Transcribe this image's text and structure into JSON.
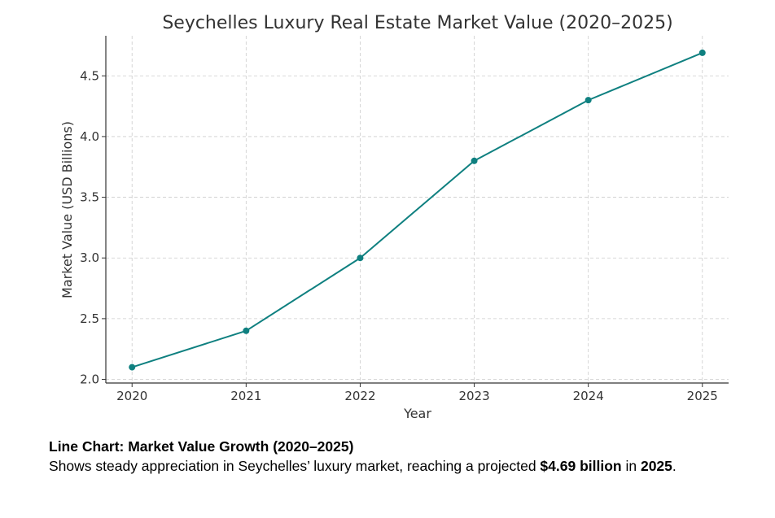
{
  "chart_data": {
    "type": "line",
    "title": "Seychelles Luxury Real Estate Market Value (2020–2025)",
    "xlabel": "Year",
    "ylabel": "Market Value (USD Billions)",
    "x": [
      2020,
      2021,
      2022,
      2023,
      2024,
      2025
    ],
    "x_tick_labels": [
      "2020",
      "2021",
      "2022",
      "2023",
      "2024",
      "2025"
    ],
    "y_ticks": [
      2.0,
      2.5,
      3.0,
      3.5,
      4.0,
      4.5
    ],
    "y_tick_labels": [
      "2.0",
      "2.5",
      "3.0",
      "3.5",
      "4.0",
      "4.5"
    ],
    "series": [
      {
        "values": [
          2.1,
          2.4,
          3.0,
          3.8,
          4.3,
          4.69
        ],
        "color": "#0f8080"
      }
    ],
    "xlim": [
      2019.77,
      2025.23
    ],
    "ylim": [
      1.97,
      4.83
    ],
    "grid": true,
    "grid_style": "dashed"
  },
  "caption": {
    "title": "Line Chart: Market Value Growth (2020–2025)",
    "text_before": "Shows steady appreciation in Seychelles’ luxury market, reaching a projected ",
    "value_bold": "$4.69 billion",
    "text_middle": " in ",
    "year_bold": "2025",
    "text_after": "."
  }
}
